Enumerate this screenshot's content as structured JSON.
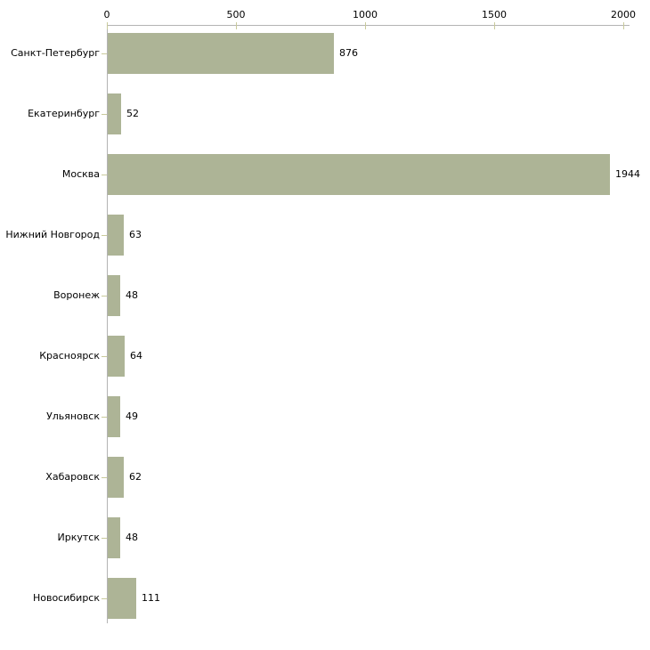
{
  "chart_data": {
    "type": "bar",
    "orientation": "horizontal",
    "title": "",
    "xlabel": "",
    "ylabel": "",
    "categories": [
      "Санкт-Петербург",
      "Екатеринбург",
      "Москва",
      "Нижний Новгород",
      "Воронеж",
      "Красноярск",
      "Ульяновск",
      "Хабаровск",
      "Иркутск",
      "Новосибирск"
    ],
    "values": [
      876,
      52,
      1944,
      63,
      48,
      64,
      49,
      62,
      48,
      111
    ],
    "value_labels": [
      "876",
      "52",
      "1944",
      "63",
      "48",
      "64",
      "49",
      "62",
      "48",
      "111"
    ],
    "xlim": [
      0,
      2000
    ],
    "x_ticks": [
      0,
      500,
      1000,
      1500,
      2000
    ],
    "x_tick_labels": [
      "0",
      "500",
      "1000",
      "1500",
      "2000"
    ],
    "x_axis_position": "top",
    "grid": false,
    "legend": null,
    "colors": {
      "bar": "#adb496",
      "axis_line": "#b3b3b3",
      "tick_mark": "#c9ca9b",
      "text": "#000000",
      "background": "#ffffff"
    }
  }
}
